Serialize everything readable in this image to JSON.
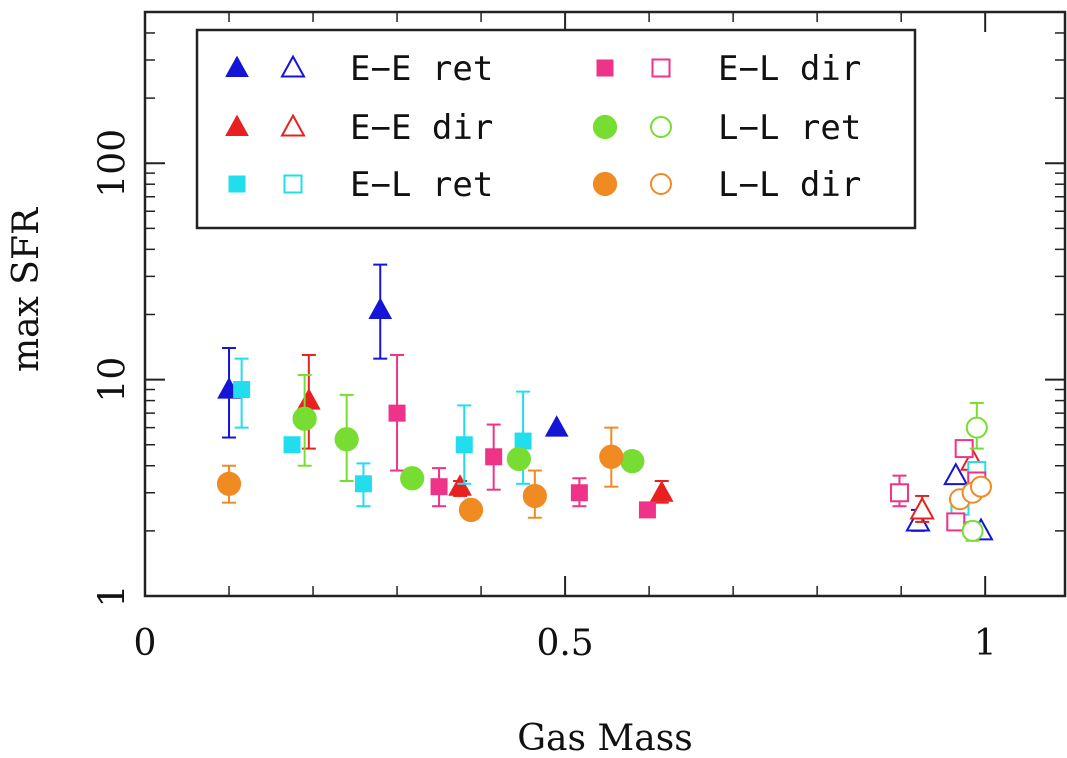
{
  "chart_data": {
    "type": "scatter",
    "xlabel": "Gas Mass",
    "ylabel": "max SFR",
    "xlim": [
      0,
      1.095
    ],
    "ylim": [
      1,
      500
    ],
    "y_scale": "log",
    "x_ticks": [
      {
        "value": 0,
        "label": "0"
      },
      {
        "value": 0.5,
        "label": "0.5"
      },
      {
        "value": 1,
        "label": "1"
      }
    ],
    "y_ticks": [
      {
        "value": 1,
        "label": "1"
      },
      {
        "value": 10,
        "label": "10"
      },
      {
        "value": 100,
        "label": "100"
      }
    ],
    "legend_position": "top",
    "series": [
      {
        "name": "E−E ret",
        "color": "#1515d8",
        "marker": "triangle",
        "filled": [
          {
            "x": 0.1,
            "y": 9.0,
            "ylo": 5.4,
            "yhi": 14.0
          },
          {
            "x": 0.28,
            "y": 21.0,
            "ylo": 12.5,
            "yhi": 34.0
          },
          {
            "x": 0.49,
            "y": 6.0
          }
        ],
        "open": [
          {
            "x": 0.92,
            "y": 2.2,
            "ylo": 2.0,
            "yhi": 2.5
          },
          {
            "x": 0.965,
            "y": 3.6
          },
          {
            "x": 0.995,
            "y": 2.0
          }
        ]
      },
      {
        "name": "E−E dir",
        "color": "#e82020",
        "marker": "triangle",
        "filled": [
          {
            "x": 0.195,
            "y": 8.0,
            "ylo": 4.8,
            "yhi": 13.0
          },
          {
            "x": 0.375,
            "y": 3.2,
            "ylo": 2.9,
            "yhi": 3.4
          },
          {
            "x": 0.615,
            "y": 3.0,
            "ylo": 2.7,
            "yhi": 3.4
          }
        ],
        "open": [
          {
            "x": 0.925,
            "y": 2.5,
            "ylo": 2.2,
            "yhi": 2.9
          },
          {
            "x": 0.985,
            "y": 4.2
          }
        ]
      },
      {
        "name": "E−L ret",
        "color": "#22ddee",
        "marker": "square",
        "filled": [
          {
            "x": 0.115,
            "y": 9.0,
            "ylo": 6.0,
            "yhi": 12.5
          },
          {
            "x": 0.175,
            "y": 5.0
          },
          {
            "x": 0.26,
            "y": 3.3,
            "ylo": 2.6,
            "yhi": 4.1
          },
          {
            "x": 0.38,
            "y": 5.0,
            "ylo": 3.3,
            "yhi": 7.6
          },
          {
            "x": 0.45,
            "y": 5.2,
            "ylo": 3.3,
            "yhi": 8.8
          }
        ],
        "open": [
          {
            "x": 0.97,
            "y": 2.6
          },
          {
            "x": 0.99,
            "y": 3.8
          }
        ]
      },
      {
        "name": "E−L dir",
        "color": "#ee3388",
        "marker": "square",
        "filled": [
          {
            "x": 0.3,
            "y": 7.0,
            "ylo": 3.8,
            "yhi": 13.0
          },
          {
            "x": 0.35,
            "y": 3.2,
            "ylo": 2.6,
            "yhi": 3.9
          },
          {
            "x": 0.415,
            "y": 4.4,
            "ylo": 3.1,
            "yhi": 6.2
          },
          {
            "x": 0.517,
            "y": 3.0,
            "ylo": 2.6,
            "yhi": 3.5
          },
          {
            "x": 0.598,
            "y": 2.5
          }
        ],
        "open": [
          {
            "x": 0.898,
            "y": 3.0,
            "ylo": 2.6,
            "yhi": 3.6
          },
          {
            "x": 0.965,
            "y": 2.2
          },
          {
            "x": 0.975,
            "y": 4.8
          },
          {
            "x": 0.99,
            "y": 3.4
          }
        ]
      },
      {
        "name": "L−L ret",
        "color": "#77dd33",
        "marker": "circle",
        "filled": [
          {
            "x": 0.19,
            "y": 6.6,
            "ylo": 4.0,
            "yhi": 10.5
          },
          {
            "x": 0.24,
            "y": 5.3,
            "ylo": 3.4,
            "yhi": 8.5
          },
          {
            "x": 0.318,
            "y": 3.5
          },
          {
            "x": 0.445,
            "y": 4.3
          },
          {
            "x": 0.58,
            "y": 4.2
          }
        ],
        "open": [
          {
            "x": 0.985,
            "y": 2.0,
            "ylo": 1.8,
            "yhi": 2.2
          },
          {
            "x": 0.99,
            "y": 6.0,
            "ylo": 4.8,
            "yhi": 7.8
          }
        ]
      },
      {
        "name": "L−L dir",
        "color": "#f08a22",
        "marker": "circle",
        "filled": [
          {
            "x": 0.1,
            "y": 3.3,
            "ylo": 2.7,
            "yhi": 4.0
          },
          {
            "x": 0.388,
            "y": 2.5
          },
          {
            "x": 0.464,
            "y": 2.9,
            "ylo": 2.3,
            "yhi": 3.8
          },
          {
            "x": 0.555,
            "y": 4.4,
            "ylo": 3.2,
            "yhi": 6.0
          }
        ],
        "open": [
          {
            "x": 0.97,
            "y": 2.8
          },
          {
            "x": 0.985,
            "y": 3.0
          },
          {
            "x": 0.995,
            "y": 3.2
          }
        ]
      }
    ]
  }
}
